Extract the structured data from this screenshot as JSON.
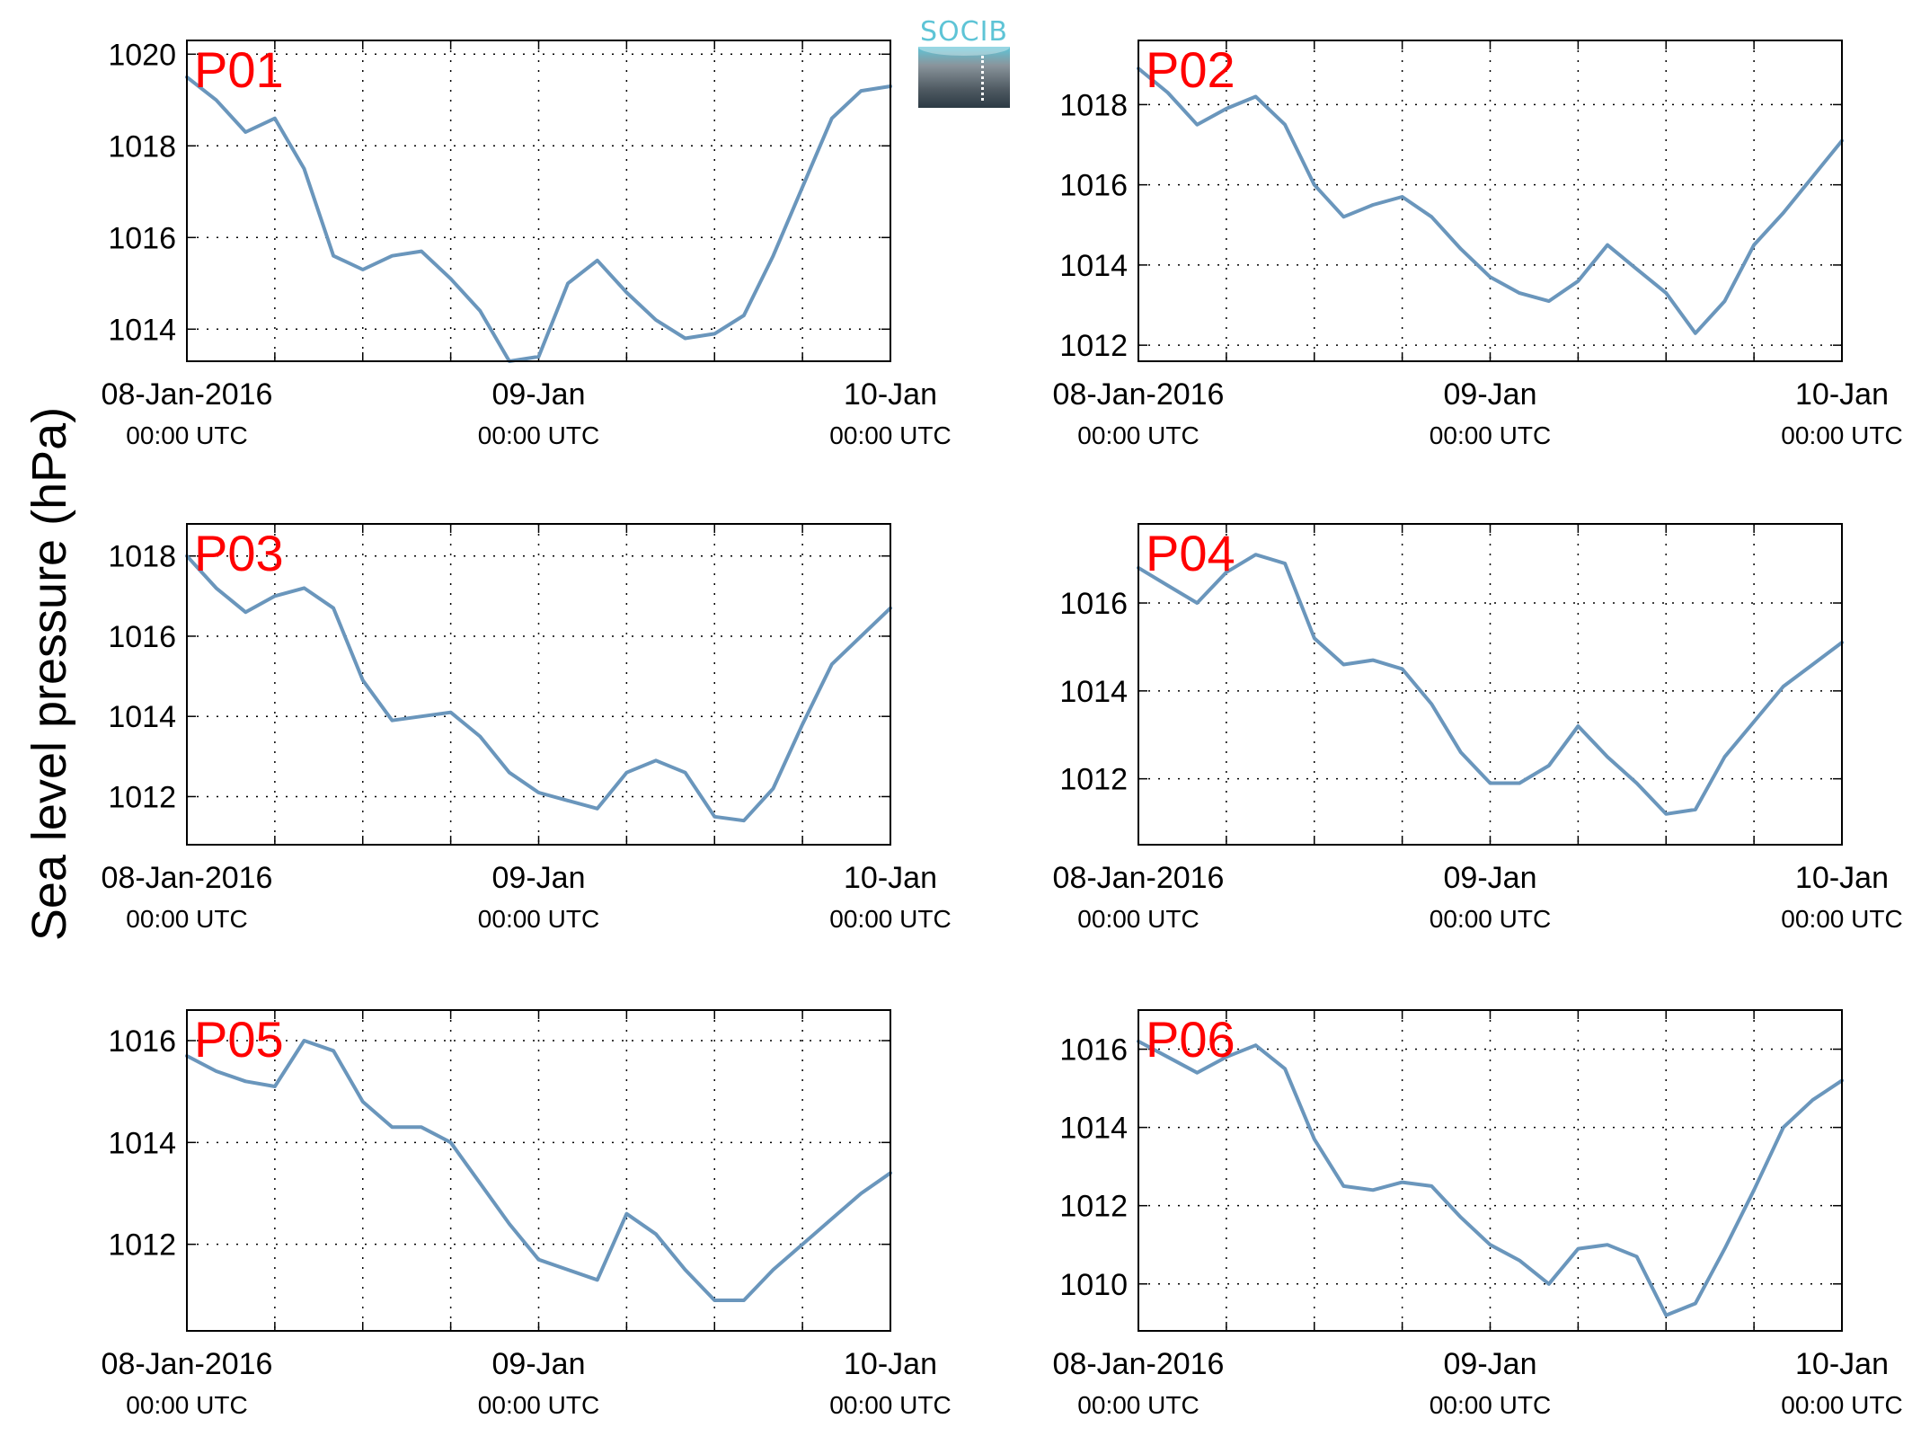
{
  "ylabel": "Sea level pressure (hPa)",
  "logo": {
    "text": "SOCIB"
  },
  "colors": {
    "line": "#6a96bc",
    "panel_label": "#ff0000",
    "axis": "#000000",
    "grid": "#000000"
  },
  "x_ticks": [
    {
      "top": "08-Jan-2016",
      "bottom": "00:00 UTC"
    },
    {
      "top": "09-Jan",
      "bottom": "00:00 UTC"
    },
    {
      "top": "10-Jan",
      "bottom": "00:00 UTC"
    }
  ],
  "chart_data": [
    {
      "type": "line",
      "label": "P01",
      "x_range": [
        "2016-01-08 00:00",
        "2016-01-10 00:00"
      ],
      "ylim": [
        1013.3,
        1020.3
      ],
      "yticks": [
        1014,
        1016,
        1018,
        1020
      ],
      "grid": true,
      "x_hours": [
        0,
        2,
        4,
        6,
        8,
        10,
        12,
        14,
        16,
        18,
        20,
        22,
        24,
        26,
        28,
        30,
        32,
        34,
        36,
        38,
        40,
        42,
        44,
        46,
        48
      ],
      "values": [
        1019.5,
        1019.0,
        1018.3,
        1018.6,
        1017.5,
        1015.6,
        1015.3,
        1015.6,
        1015.7,
        1015.1,
        1014.4,
        1013.3,
        1013.4,
        1015.0,
        1015.5,
        1014.8,
        1014.2,
        1013.8,
        1013.9,
        1014.3,
        1015.6,
        1017.1,
        1018.6,
        1019.2,
        1019.3
      ]
    },
    {
      "type": "line",
      "label": "P02",
      "x_range": [
        "2016-01-08 00:00",
        "2016-01-10 00:00"
      ],
      "ylim": [
        1011.6,
        1019.6
      ],
      "yticks": [
        1012,
        1014,
        1016,
        1018
      ],
      "grid": true,
      "x_hours": [
        0,
        2,
        4,
        6,
        8,
        10,
        12,
        14,
        16,
        18,
        20,
        22,
        24,
        26,
        28,
        30,
        32,
        34,
        36,
        38,
        40,
        42,
        44,
        46,
        48
      ],
      "values": [
        1018.9,
        1018.3,
        1017.5,
        1017.9,
        1018.2,
        1017.5,
        1016.0,
        1015.2,
        1015.5,
        1015.7,
        1015.2,
        1014.4,
        1013.7,
        1013.3,
        1013.1,
        1013.6,
        1014.5,
        1013.9,
        1013.3,
        1012.3,
        1013.1,
        1014.5,
        1015.3,
        1016.2,
        1017.1
      ]
    },
    {
      "type": "line",
      "label": "P03",
      "x_range": [
        "2016-01-08 00:00",
        "2016-01-10 00:00"
      ],
      "ylim": [
        1010.8,
        1018.8
      ],
      "yticks": [
        1012,
        1014,
        1016,
        1018
      ],
      "grid": true,
      "x_hours": [
        0,
        2,
        4,
        6,
        8,
        10,
        12,
        14,
        16,
        18,
        20,
        22,
        24,
        26,
        28,
        30,
        32,
        34,
        36,
        38,
        40,
        42,
        44,
        46,
        48
      ],
      "values": [
        1018.0,
        1017.2,
        1016.6,
        1017.0,
        1017.2,
        1016.7,
        1014.9,
        1013.9,
        1014.0,
        1014.1,
        1013.5,
        1012.6,
        1012.1,
        1011.9,
        1011.7,
        1012.6,
        1012.9,
        1012.6,
        1011.5,
        1011.4,
        1012.2,
        1013.8,
        1015.3,
        1016.0,
        1016.7
      ]
    },
    {
      "type": "line",
      "label": "P04",
      "x_range": [
        "2016-01-08 00:00",
        "2016-01-10 00:00"
      ],
      "ylim": [
        1010.5,
        1017.8
      ],
      "yticks": [
        1012,
        1014,
        1016
      ],
      "grid": true,
      "x_hours": [
        0,
        2,
        4,
        6,
        8,
        10,
        12,
        14,
        16,
        18,
        20,
        22,
        24,
        26,
        28,
        30,
        32,
        34,
        36,
        38,
        40,
        42,
        44,
        46,
        48
      ],
      "values": [
        1016.8,
        1016.4,
        1016.0,
        1016.7,
        1017.1,
        1016.9,
        1015.2,
        1014.6,
        1014.7,
        1014.5,
        1013.7,
        1012.6,
        1011.9,
        1011.9,
        1012.3,
        1013.2,
        1012.5,
        1011.9,
        1011.2,
        1011.3,
        1012.5,
        1013.3,
        1014.1,
        1014.6,
        1015.1
      ]
    },
    {
      "type": "line",
      "label": "P05",
      "x_range": [
        "2016-01-08 00:00",
        "2016-01-10 00:00"
      ],
      "ylim": [
        1010.3,
        1016.6
      ],
      "yticks": [
        1012,
        1014,
        1016
      ],
      "grid": true,
      "x_hours": [
        0,
        2,
        4,
        6,
        8,
        10,
        12,
        14,
        16,
        18,
        20,
        22,
        24,
        26,
        28,
        30,
        32,
        34,
        36,
        38,
        40,
        42,
        44,
        46,
        48
      ],
      "values": [
        1015.7,
        1015.4,
        1015.2,
        1015.1,
        1016.0,
        1015.8,
        1014.8,
        1014.3,
        1014.3,
        1014.0,
        1013.2,
        1012.4,
        1011.7,
        1011.5,
        1011.3,
        1012.6,
        1012.2,
        1011.5,
        1010.9,
        1010.9,
        1011.5,
        1012.0,
        1012.5,
        1013.0,
        1013.4
      ]
    },
    {
      "type": "line",
      "label": "P06",
      "x_range": [
        "2016-01-08 00:00",
        "2016-01-10 00:00"
      ],
      "ylim": [
        1008.8,
        1017.0
      ],
      "yticks": [
        1010,
        1012,
        1014,
        1016
      ],
      "grid": true,
      "x_hours": [
        0,
        2,
        4,
        6,
        8,
        10,
        12,
        14,
        16,
        18,
        20,
        22,
        24,
        26,
        28,
        30,
        32,
        34,
        36,
        38,
        40,
        42,
        44,
        46,
        48
      ],
      "values": [
        1016.2,
        1015.8,
        1015.4,
        1015.8,
        1016.1,
        1015.5,
        1013.7,
        1012.5,
        1012.4,
        1012.6,
        1012.5,
        1011.7,
        1011.0,
        1010.6,
        1010.0,
        1010.9,
        1011.0,
        1010.7,
        1009.2,
        1009.5,
        1010.9,
        1012.4,
        1014.0,
        1014.7,
        1015.2
      ]
    }
  ]
}
